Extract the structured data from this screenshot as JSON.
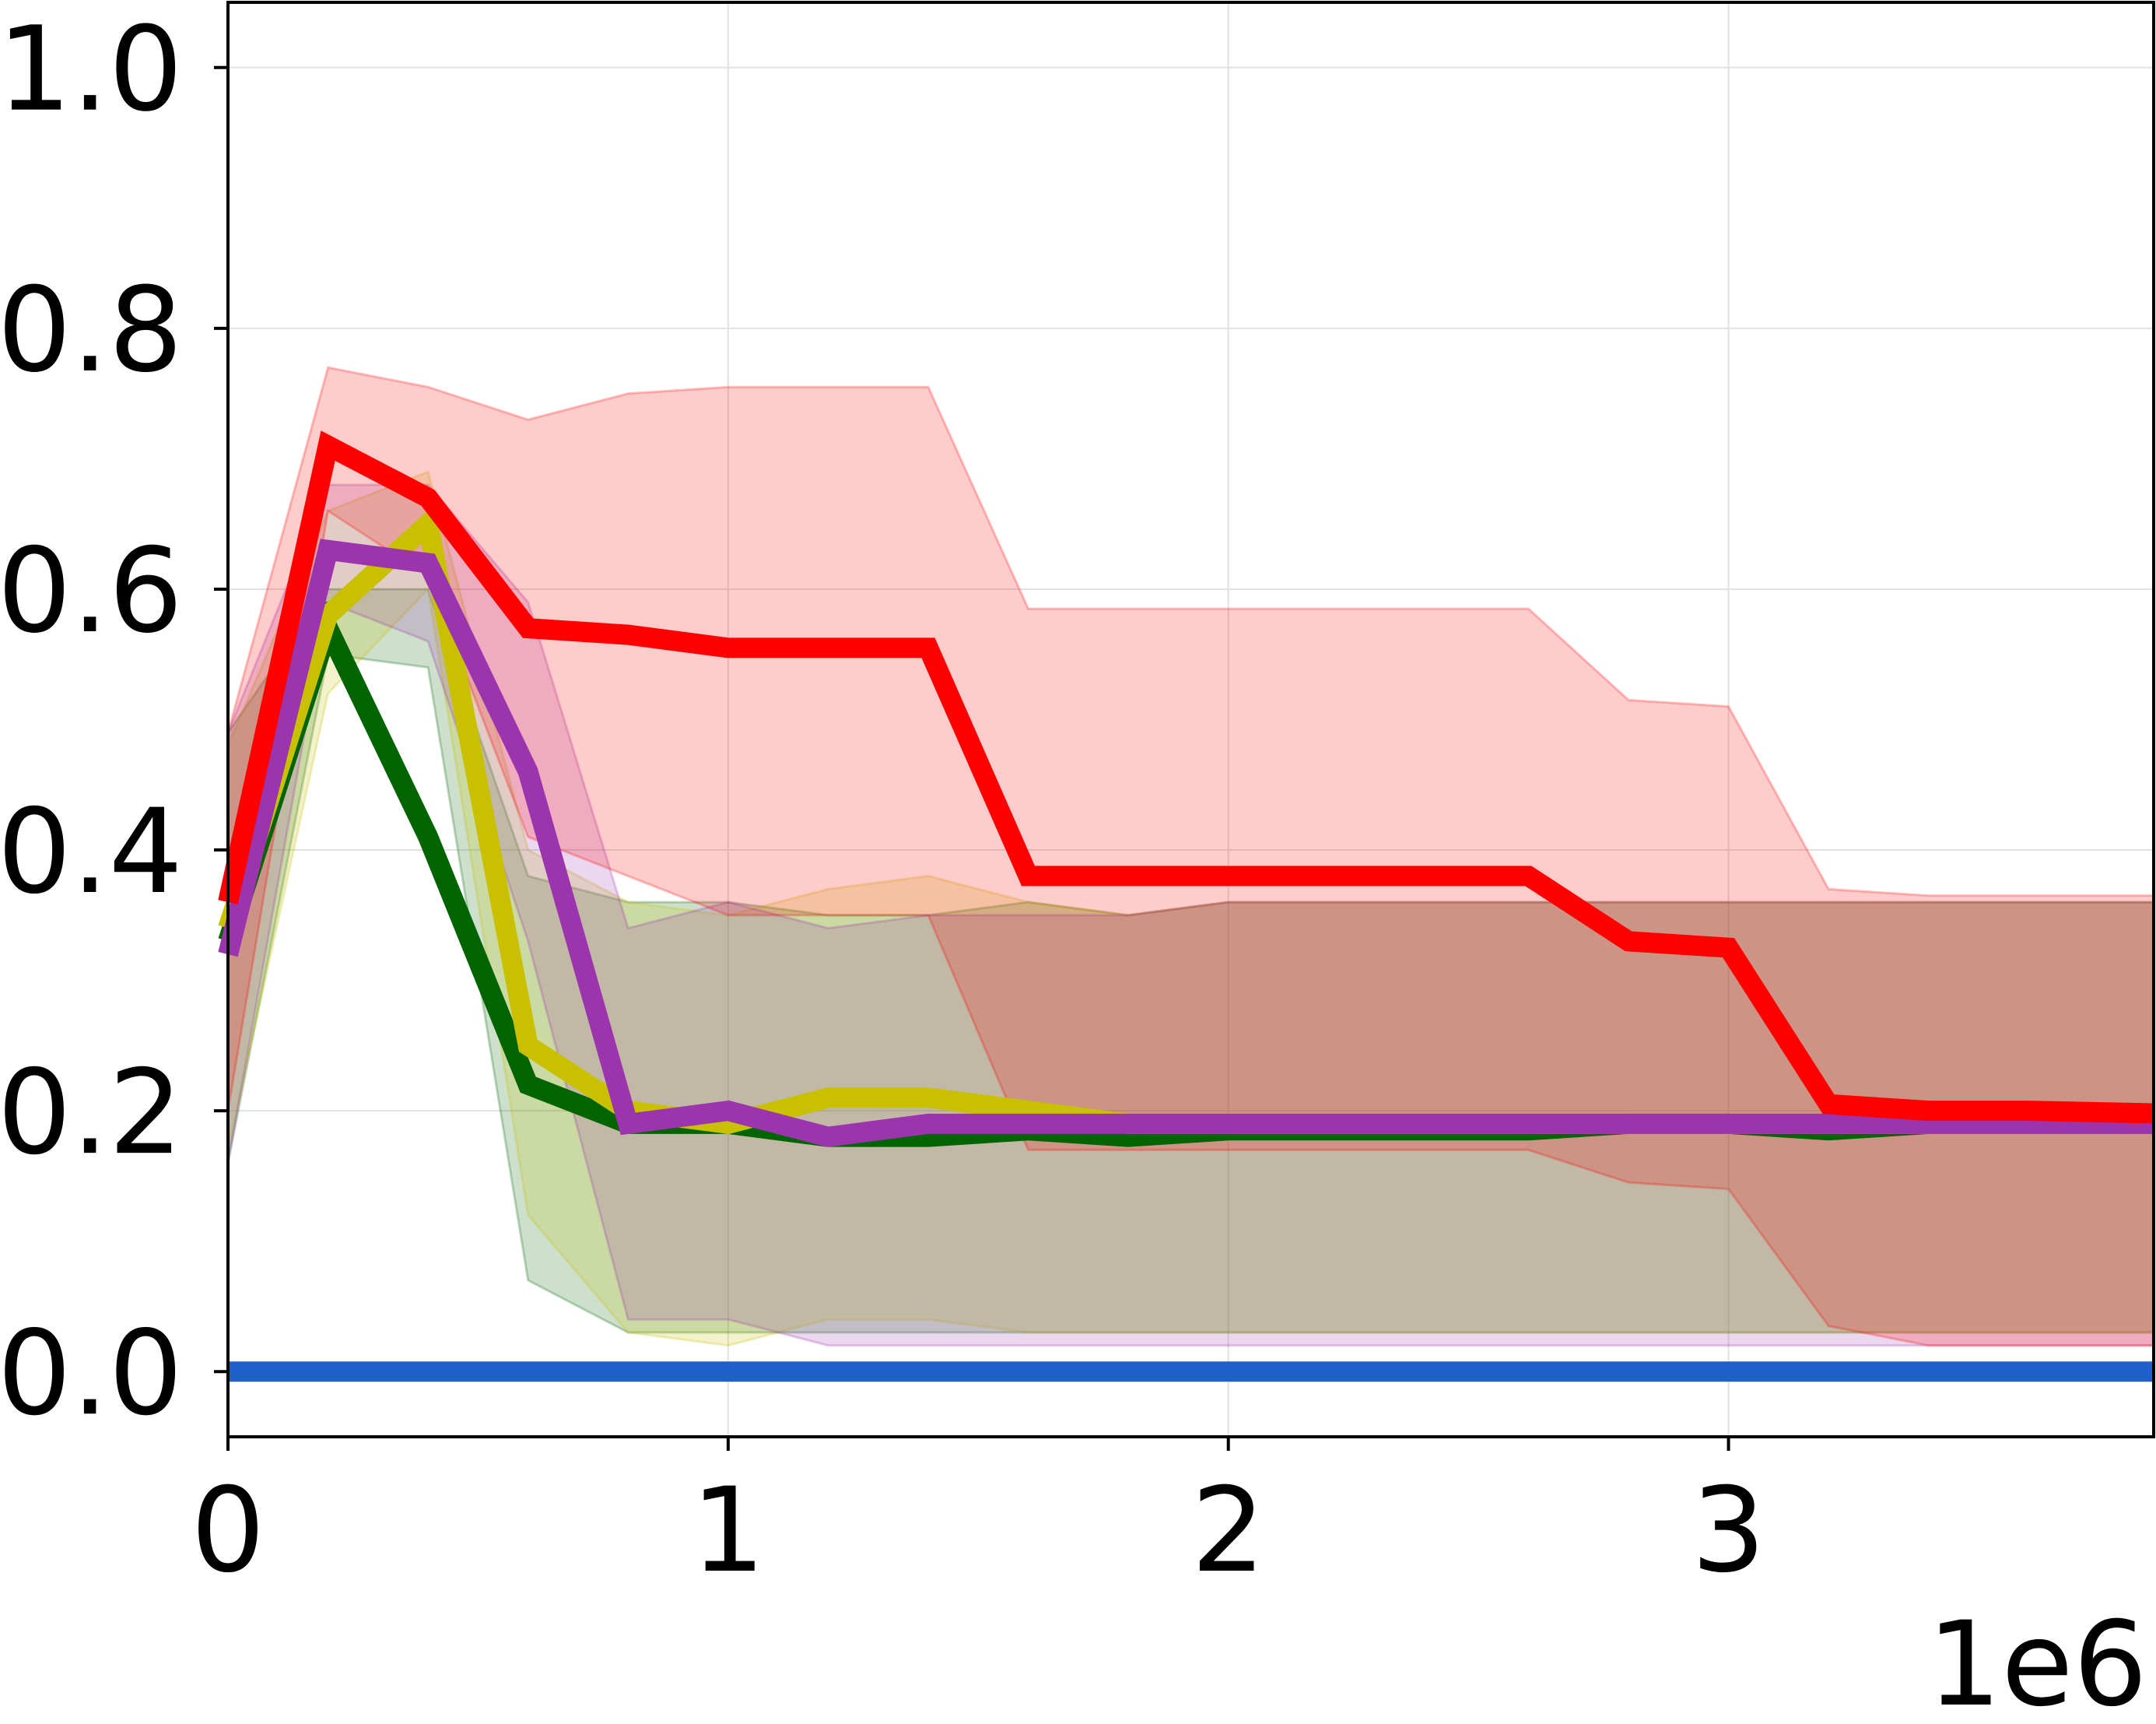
{
  "chart_data": {
    "type": "line",
    "title": "",
    "xlabel": "",
    "ylabel": "",
    "x_offset_label": "1e6",
    "xlim": [
      0,
      3.85
    ],
    "ylim": [
      -0.05,
      1.05
    ],
    "grid": true,
    "x_ticks": [
      {
        "value": 0,
        "label": "0"
      },
      {
        "value": 1,
        "label": "1"
      },
      {
        "value": 2,
        "label": "2"
      },
      {
        "value": 3,
        "label": "3"
      }
    ],
    "y_ticks": [
      {
        "value": 0.0,
        "label": "0.0"
      },
      {
        "value": 0.2,
        "label": "0.2"
      },
      {
        "value": 0.4,
        "label": "0.4"
      },
      {
        "value": 0.6,
        "label": "0.6"
      },
      {
        "value": 0.8,
        "label": "0.8"
      },
      {
        "value": 1.0,
        "label": "1.0"
      }
    ],
    "x": [
      0,
      0.2,
      0.4,
      0.6,
      0.8,
      1.0,
      1.2,
      1.4,
      1.6,
      1.8,
      2.0,
      2.2,
      2.4,
      2.6,
      2.8,
      3.0,
      3.2,
      3.4,
      3.6,
      3.85
    ],
    "series": [
      {
        "name": "blue",
        "color": "#1f5fc8",
        "values": [
          0,
          0,
          0,
          0,
          0,
          0,
          0,
          0,
          0,
          0,
          0,
          0,
          0,
          0,
          0,
          0,
          0,
          0,
          0,
          0
        ]
      },
      {
        "name": "green",
        "color": "#006400",
        "values": [
          0.33,
          0.57,
          0.41,
          0.22,
          0.19,
          0.19,
          0.18,
          0.18,
          0.185,
          0.18,
          0.185,
          0.185,
          0.185,
          0.185,
          0.19,
          0.19,
          0.185,
          0.19,
          0.19,
          0.19
        ],
        "lower": [
          0.16,
          0.55,
          0.54,
          0.07,
          0.03,
          0.03,
          0.03,
          0.03,
          0.03,
          0.03,
          0.03,
          0.03,
          0.03,
          0.03,
          0.03,
          0.03,
          0.03,
          0.03,
          0.03,
          0.03
        ],
        "upper": [
          0.49,
          0.6,
          0.6,
          0.38,
          0.36,
          0.36,
          0.35,
          0.35,
          0.36,
          0.35,
          0.36,
          0.36,
          0.36,
          0.36,
          0.36,
          0.36,
          0.36,
          0.36,
          0.36,
          0.36
        ]
      },
      {
        "name": "yellow",
        "color": "#c8c000",
        "values": [
          0.34,
          0.58,
          0.65,
          0.25,
          0.2,
          0.19,
          0.21,
          0.21,
          0.2,
          0.19,
          0.19,
          0.19,
          0.19,
          0.19,
          0.19,
          0.19,
          0.19,
          0.19,
          0.19,
          0.19
        ],
        "lower": [
          0.17,
          0.52,
          0.6,
          0.12,
          0.03,
          0.02,
          0.04,
          0.04,
          0.03,
          0.03,
          0.03,
          0.03,
          0.03,
          0.03,
          0.03,
          0.03,
          0.03,
          0.03,
          0.03,
          0.03
        ],
        "upper": [
          0.48,
          0.66,
          0.69,
          0.4,
          0.36,
          0.35,
          0.37,
          0.38,
          0.36,
          0.35,
          0.36,
          0.36,
          0.36,
          0.36,
          0.36,
          0.36,
          0.36,
          0.36,
          0.36,
          0.36
        ]
      },
      {
        "name": "purple",
        "color": "#9c35ad",
        "values": [
          0.32,
          0.63,
          0.62,
          0.46,
          0.19,
          0.2,
          0.18,
          0.19,
          0.19,
          0.19,
          0.19,
          0.19,
          0.19,
          0.19,
          0.19,
          0.19,
          0.19,
          0.19,
          0.19,
          0.19
        ],
        "lower": [
          0.16,
          0.59,
          0.56,
          0.33,
          0.04,
          0.04,
          0.02,
          0.02,
          0.02,
          0.02,
          0.02,
          0.02,
          0.02,
          0.02,
          0.02,
          0.02,
          0.02,
          0.02,
          0.02,
          0.02
        ],
        "upper": [
          0.49,
          0.68,
          0.68,
          0.59,
          0.34,
          0.36,
          0.34,
          0.35,
          0.35,
          0.35,
          0.36,
          0.36,
          0.36,
          0.36,
          0.36,
          0.36,
          0.36,
          0.36,
          0.36,
          0.36
        ]
      },
      {
        "name": "red",
        "color": "#ff0000",
        "values": [
          0.36,
          0.71,
          0.67,
          0.57,
          0.565,
          0.555,
          0.555,
          0.555,
          0.38,
          0.38,
          0.38,
          0.38,
          0.38,
          0.38,
          0.33,
          0.325,
          0.205,
          0.2,
          0.2,
          0.198
        ],
        "lower": [
          0.2,
          0.66,
          0.61,
          0.41,
          0.38,
          0.35,
          0.35,
          0.35,
          0.17,
          0.17,
          0.17,
          0.17,
          0.17,
          0.17,
          0.145,
          0.14,
          0.035,
          0.02,
          0.02,
          0.02
        ],
        "upper": [
          0.49,
          0.77,
          0.755,
          0.73,
          0.75,
          0.755,
          0.755,
          0.755,
          0.585,
          0.585,
          0.585,
          0.585,
          0.585,
          0.585,
          0.515,
          0.51,
          0.37,
          0.365,
          0.365,
          0.365
        ]
      }
    ]
  }
}
